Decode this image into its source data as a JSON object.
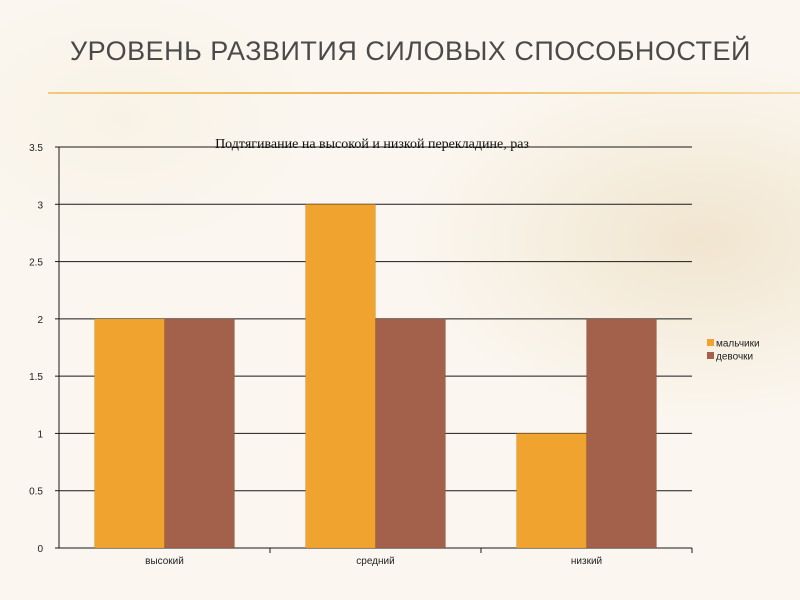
{
  "slide": {
    "title": "УРОВЕНЬ РАЗВИТИЯ СИЛОВЫХ СПОСОБНОСТЕЙ"
  },
  "colors": {
    "boys": "#f0a42f",
    "girls": "#a3614b",
    "rule": "#f0b552"
  },
  "chart_data": {
    "type": "bar",
    "title": "Подтягивание на высокой и низкой перекладине, раз",
    "categories": [
      "высокий",
      "средний",
      "низкий"
    ],
    "series": [
      {
        "name": "мальчики",
        "values": [
          2,
          3,
          1
        ]
      },
      {
        "name": "девочки",
        "values": [
          2,
          2,
          2
        ]
      }
    ],
    "xlabel": "",
    "ylabel": "",
    "ylim": [
      0,
      3.5
    ],
    "yticks": [
      0,
      0.5,
      1,
      1.5,
      2,
      2.5,
      3,
      3.5
    ],
    "grid": true,
    "legend": "right"
  }
}
